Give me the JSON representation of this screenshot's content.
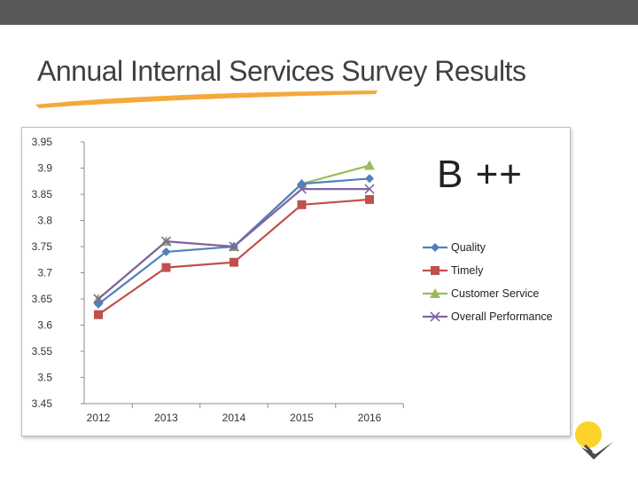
{
  "slide": {
    "title": "Annual Internal Services Survey Results",
    "grade": "B ++"
  },
  "colors": {
    "top_bar": "#58595b",
    "title_underline": "#f4a93a",
    "logo_sun": "#fdd32b"
  },
  "chart_data": {
    "type": "line",
    "categories": [
      "2012",
      "2013",
      "2014",
      "2015",
      "2016"
    ],
    "y_ticks": [
      "3.95",
      "3.9",
      "3.85",
      "3.8",
      "3.75",
      "3.7",
      "3.65",
      "3.6",
      "3.55",
      "3.5",
      "3.45"
    ],
    "ylim": [
      3.45,
      3.95
    ],
    "grid": false,
    "legend_position": "right",
    "series": [
      {
        "name": "Quality",
        "values": [
          3.64,
          3.74,
          3.75,
          3.87,
          3.88
        ],
        "color": "#4f81bd",
        "marker": "diamond"
      },
      {
        "name": "Timely",
        "values": [
          3.62,
          3.71,
          3.72,
          3.83,
          3.84
        ],
        "color": "#c0504d",
        "marker": "square"
      },
      {
        "name": "Customer Service",
        "values": [
          3.65,
          3.76,
          3.75,
          3.87,
          3.905
        ],
        "color": "#9bbb59",
        "marker": "triangle"
      },
      {
        "name": "Overall Performance",
        "values": [
          3.65,
          3.76,
          3.75,
          3.86,
          3.86
        ],
        "color": "#8064a2",
        "marker": "x"
      }
    ]
  }
}
